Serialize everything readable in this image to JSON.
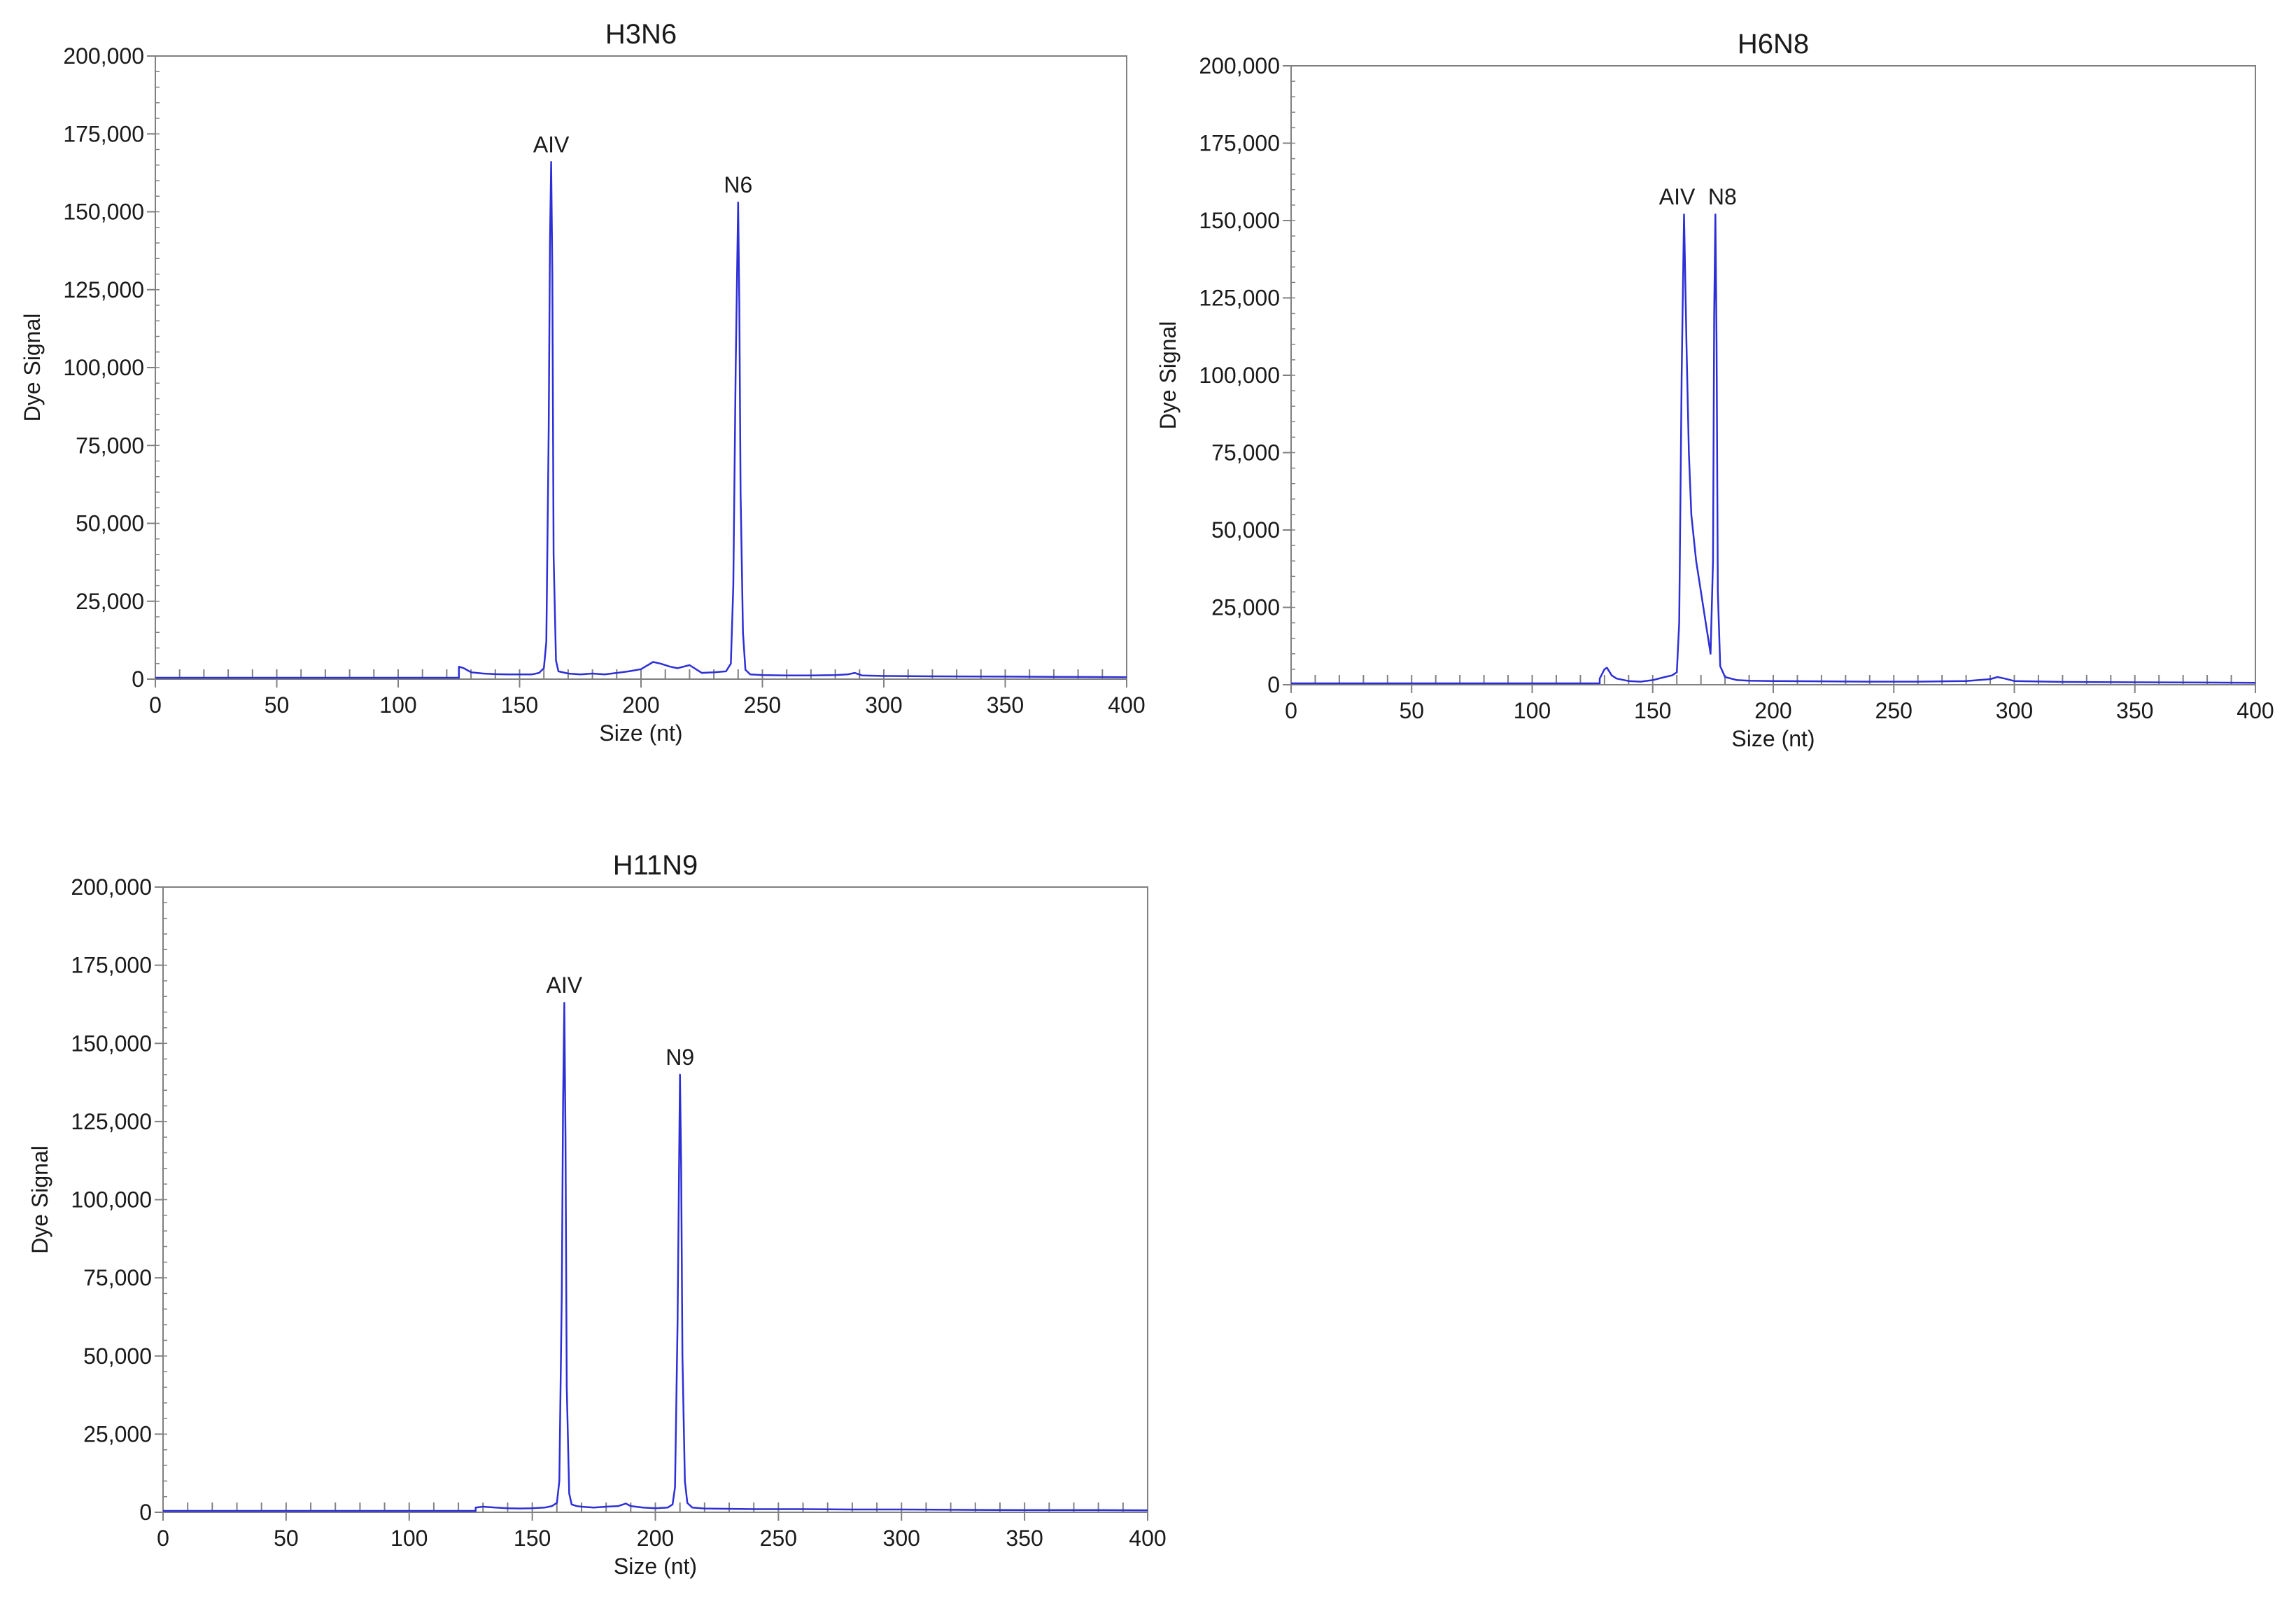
{
  "figure": {
    "background": "#ffffff",
    "line_color": "#2d2fd6",
    "axis_color": "#808080"
  },
  "chart_data": [
    {
      "type": "line",
      "title": "H3N6",
      "xlabel": "Size (nt)",
      "ylabel": "Dye Signal",
      "xlim": [
        0,
        400
      ],
      "ylim": [
        0,
        200000
      ],
      "x_ticks": [
        "0",
        "50",
        "100",
        "150",
        "200",
        "250",
        "300",
        "350",
        "400"
      ],
      "y_ticks": [
        "0",
        "25,000",
        "50,000",
        "75,000",
        "100,000",
        "125,000",
        "150,000",
        "175,000",
        "200,000"
      ],
      "grid": false,
      "peaks": [
        {
          "label": "AIV",
          "x": 163,
          "y": 166000
        },
        {
          "label": "N6",
          "x": 240,
          "y": 153000
        }
      ],
      "series": [
        {
          "x": [
            125,
            127,
            130,
            135,
            140,
            145,
            150,
            155,
            158,
            160,
            161,
            162,
            162.5,
            163,
            163.5,
            164,
            165,
            166,
            170,
            175,
            180,
            185,
            190,
            195,
            200,
            205,
            208,
            212,
            215,
            220,
            225,
            230,
            235,
            237,
            238,
            239,
            240,
            240.5,
            241,
            242,
            243,
            245,
            250,
            260,
            270,
            280,
            285,
            288,
            291,
            300,
            320,
            350,
            380,
            400
          ],
          "y": [
            4000,
            3500,
            2200,
            1800,
            1600,
            1500,
            1500,
            1500,
            2000,
            3500,
            12000,
            80000,
            140000,
            166000,
            130000,
            40000,
            6000,
            2500,
            1800,
            1500,
            1800,
            1500,
            2000,
            2500,
            3200,
            5500,
            5000,
            4000,
            3500,
            4500,
            2000,
            2200,
            2500,
            5000,
            30000,
            100000,
            153000,
            120000,
            60000,
            15000,
            3000,
            1500,
            1300,
            1200,
            1200,
            1300,
            1500,
            2000,
            1200,
            1000,
            900,
            800,
            700,
            600
          ]
        }
      ]
    },
    {
      "type": "line",
      "title": "H6N8",
      "xlabel": "Size (nt)",
      "ylabel": "Dye Signal",
      "xlim": [
        0,
        400
      ],
      "ylim": [
        0,
        200000
      ],
      "x_ticks": [
        "0",
        "50",
        "100",
        "150",
        "200",
        "250",
        "300",
        "350",
        "400"
      ],
      "y_ticks": [
        "0",
        "25,000",
        "50,000",
        "75,000",
        "100,000",
        "125,000",
        "150,000",
        "175,000",
        "200,000"
      ],
      "grid": false,
      "peaks": [
        {
          "label": "AIV",
          "x": 163,
          "y": 152000
        },
        {
          "label": "N8",
          "x": 176,
          "y": 152000
        }
      ],
      "series": [
        {
          "x": [
            128,
            130,
            131,
            133,
            135,
            140,
            145,
            150,
            155,
            158,
            160,
            161,
            162,
            163,
            164,
            165,
            166,
            168,
            170,
            172,
            173,
            174,
            175,
            175.5,
            176,
            176.5,
            177,
            178,
            180,
            185,
            190,
            200,
            220,
            240,
            260,
            280,
            290,
            293,
            296,
            300,
            320,
            350,
            380,
            400
          ],
          "y": [
            2000,
            5000,
            5500,
            3000,
            2000,
            1200,
            1000,
            1500,
            2500,
            3000,
            4000,
            20000,
            100000,
            152000,
            110000,
            75000,
            55000,
            40000,
            30000,
            20000,
            15000,
            10000,
            40000,
            120000,
            152000,
            110000,
            30000,
            6000,
            2500,
            1500,
            1300,
            1200,
            1100,
            1000,
            1000,
            1200,
            1800,
            2500,
            2000,
            1200,
            900,
            800,
            700,
            600
          ]
        }
      ]
    },
    {
      "type": "line",
      "title": "H11N9",
      "xlabel": "Size (nt)",
      "ylabel": "Dye Signal",
      "xlim": [
        0,
        400
      ],
      "ylim": [
        0,
        200000
      ],
      "x_ticks": [
        "0",
        "50",
        "100",
        "150",
        "200",
        "250",
        "300",
        "350",
        "400"
      ],
      "y_ticks": [
        "0",
        "25,000",
        "50,000",
        "75,000",
        "100,000",
        "125,000",
        "150,000",
        "175,000",
        "200,000"
      ],
      "grid": false,
      "peaks": [
        {
          "label": "AIV",
          "x": 163,
          "y": 163000
        },
        {
          "label": "N9",
          "x": 210,
          "y": 140000
        }
      ],
      "series": [
        {
          "x": [
            127,
            130,
            135,
            140,
            145,
            150,
            155,
            158,
            160,
            161,
            162,
            162.5,
            163,
            163.5,
            164,
            165,
            166,
            168,
            170,
            175,
            180,
            185,
            188,
            190,
            195,
            200,
            205,
            207,
            208,
            209,
            210,
            210.5,
            211,
            212,
            213,
            215,
            220,
            240,
            260,
            280,
            300,
            320,
            350,
            380,
            400
          ],
          "y": [
            1500,
            1800,
            1500,
            1300,
            1200,
            1300,
            1500,
            2000,
            3000,
            10000,
            70000,
            130000,
            163000,
            120000,
            40000,
            6000,
            2500,
            2000,
            1800,
            1500,
            1800,
            2000,
            2800,
            2000,
            1500,
            1300,
            1500,
            2500,
            8000,
            60000,
            140000,
            110000,
            50000,
            10000,
            3000,
            1500,
            1200,
            1000,
            1000,
            900,
            900,
            800,
            700,
            700,
            600
          ]
        }
      ]
    }
  ]
}
